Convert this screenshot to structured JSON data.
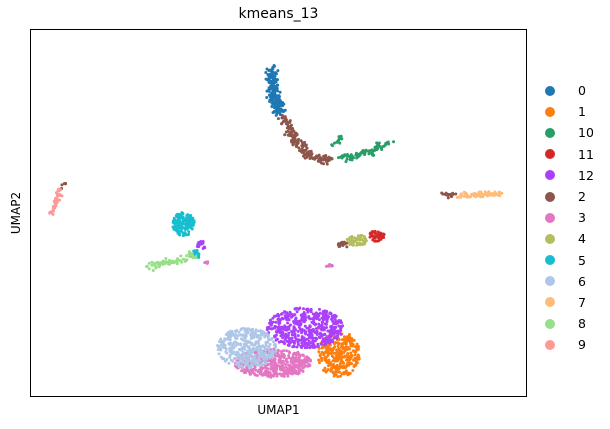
{
  "chart_data": {
    "type": "scatter",
    "title": "kmeans_13",
    "xlabel": "UMAP1",
    "ylabel": "UMAP2",
    "xlim": [
      0,
      100
    ],
    "ylim": [
      0,
      100
    ],
    "grid": false,
    "axis_ticks": false,
    "legend_position": "right",
    "series": [
      {
        "name": "0",
        "color": "#1f77b4",
        "clusters": [
          {
            "path": [
              [
                48.6,
                89.1
              ],
              [
                48.8,
                84.8
              ],
              [
                49.5,
                80.4
              ],
              [
                50.3,
                77.2
              ]
            ],
            "spread": 0.6,
            "count": 220
          }
        ]
      },
      {
        "name": "1",
        "color": "#ff7f0e",
        "clusters": [
          {
            "cx": 62.1,
            "cy": 11.6,
            "rx": 4.4,
            "ry": 6.2,
            "count": 300
          }
        ]
      },
      {
        "name": "10",
        "color": "#279e68",
        "clusters": [
          {
            "path": [
              [
                62.6,
                64.9
              ],
              [
                67.4,
                66.0
              ],
              [
                72.3,
                69.3
              ]
            ],
            "spread": 0.5,
            "count": 80
          },
          {
            "path": [
              [
                61.2,
                68.2
              ],
              [
                62.4,
                70.7
              ]
            ],
            "spread": 0.3,
            "count": 15
          }
        ]
      },
      {
        "name": "11",
        "color": "#d62728",
        "clusters": [
          {
            "cx": 69.8,
            "cy": 43.8,
            "rx": 1.5,
            "ry": 1.6,
            "count": 45
          }
        ]
      },
      {
        "name": "12",
        "color": "#aa40fc",
        "clusters": [
          {
            "cx": 55.4,
            "cy": 18.8,
            "rx": 7.7,
            "ry": 5.5,
            "count": 480
          },
          {
            "cx": 34.4,
            "cy": 41.3,
            "rx": 1.0,
            "ry": 1.1,
            "count": 15
          },
          {
            "cx": 60.5,
            "cy": 35.9,
            "rx": 0.4,
            "ry": 0.4,
            "count": 5
          }
        ]
      },
      {
        "name": "2",
        "color": "#8c564b",
        "clusters": [
          {
            "path": [
              [
                51.0,
                76.3
              ],
              [
                52.6,
                71.2
              ],
              [
                54.9,
                67.1
              ],
              [
                57.1,
                64.8
              ],
              [
                60.4,
                64.7
              ]
            ],
            "spread": 0.6,
            "count": 180
          },
          {
            "path": [
              [
                82.5,
                55.1
              ],
              [
                85.5,
                54.9
              ]
            ],
            "spread": 0.3,
            "count": 20
          },
          {
            "cx": 63.1,
            "cy": 41.5,
            "rx": 1.5,
            "ry": 0.8,
            "count": 20
          },
          {
            "path": [
              [
                6.5,
                57.4
              ],
              [
                7.2,
                58.3
              ]
            ],
            "spread": 0.2,
            "count": 5
          }
        ]
      },
      {
        "name": "3",
        "color": "#e377c2",
        "clusters": [
          {
            "cx": 48.9,
            "cy": 9.2,
            "rx": 7.7,
            "ry": 3.9,
            "count": 420
          },
          {
            "cx": 60.1,
            "cy": 35.6,
            "rx": 0.5,
            "ry": 0.5,
            "count": 6
          },
          {
            "cx": 35.6,
            "cy": 36.4,
            "rx": 0.5,
            "ry": 0.5,
            "count": 5
          }
        ]
      },
      {
        "name": "4",
        "color": "#b5bd61",
        "clusters": [
          {
            "cx": 65.8,
            "cy": 42.6,
            "rx": 2.1,
            "ry": 1.5,
            "count": 55
          }
        ]
      },
      {
        "name": "5",
        "color": "#17becf",
        "clusters": [
          {
            "cx": 30.9,
            "cy": 47.0,
            "rx": 2.2,
            "ry": 3.2,
            "count": 170
          },
          {
            "cx": 33.3,
            "cy": 38.8,
            "rx": 1.0,
            "ry": 1.3,
            "count": 20
          }
        ]
      },
      {
        "name": "6",
        "color": "#aec7e8",
        "clusters": [
          {
            "cx": 43.6,
            "cy": 13.3,
            "rx": 6.0,
            "ry": 5.4,
            "count": 340
          }
        ]
      },
      {
        "name": "7",
        "color": "#ffbb78",
        "clusters": [
          {
            "path": [
              [
                86.1,
                54.8
              ],
              [
                94.8,
                55.2
              ]
            ],
            "spread": 0.35,
            "count": 80
          }
        ]
      },
      {
        "name": "8",
        "color": "#98df8a",
        "clusters": [
          {
            "path": [
              [
                24.0,
                35.6
              ],
              [
                28.8,
                36.7
              ],
              [
                32.8,
                38.6
              ]
            ],
            "spread": 0.5,
            "count": 70
          }
        ]
      },
      {
        "name": "9",
        "color": "#ff9896",
        "clusters": [
          {
            "path": [
              [
                4.4,
                49.5
              ],
              [
                5.2,
                53.2
              ],
              [
                6.4,
                56.6
              ]
            ],
            "spread": 0.35,
            "count": 40
          }
        ]
      }
    ]
  }
}
